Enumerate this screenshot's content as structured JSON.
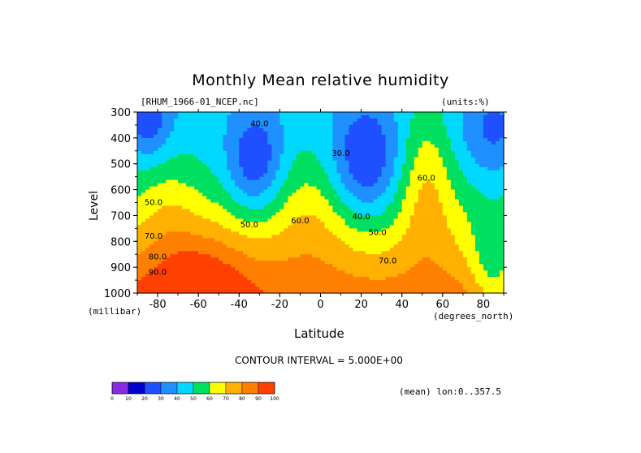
{
  "chart_data": {
    "type": "heatmap",
    "title": "Monthly Mean relative humidity",
    "file_label": "[RHUM_1966-01_NCEP.nc]",
    "units_label": "(units:%)",
    "xlabel": "Latitude",
    "ylabel": "Level",
    "x_units": "(degrees_north)",
    "y_units": "(millibar)",
    "xlim": [
      -90,
      90
    ],
    "ylim": [
      1000,
      300
    ],
    "x_ticks": [
      "-80",
      "-60",
      "-40",
      "-20",
      "0",
      "20",
      "40",
      "60",
      "80"
    ],
    "y_ticks": [
      "300",
      "400",
      "500",
      "600",
      "700",
      "800",
      "900",
      "1000"
    ],
    "contour_interval_text": "CONTOUR INTERVAL = 5.000E+00",
    "mean_text": "(mean) lon:0..357.5",
    "contour_labels": [
      {
        "text": "40.0",
        "lat": -30,
        "level": 355
      },
      {
        "text": "30.0",
        "lat": 10,
        "level": 470
      },
      {
        "text": "60.0",
        "lat": 52,
        "level": 565
      },
      {
        "text": "50.0",
        "lat": -82,
        "level": 660
      },
      {
        "text": "50.0",
        "lat": -35,
        "level": 745
      },
      {
        "text": "60.0",
        "lat": -10,
        "level": 730
      },
      {
        "text": "40.0",
        "lat": 20,
        "level": 715
      },
      {
        "text": "50.0",
        "lat": 28,
        "level": 775
      },
      {
        "text": "70.0",
        "lat": -82,
        "level": 790
      },
      {
        "text": "70.0",
        "lat": 33,
        "level": 885
      },
      {
        "text": "80.0",
        "lat": -80,
        "level": 870
      },
      {
        "text": "90.0",
        "lat": -80,
        "level": 930
      }
    ],
    "colorbar": {
      "ticks": [
        "0",
        "10",
        "20",
        "30",
        "40",
        "50",
        "60",
        "70",
        "80",
        "90",
        "100"
      ],
      "colors": [
        "#8a2be2",
        "#0000cd",
        "#1e50ff",
        "#1e90ff",
        "#00d8ff",
        "#00e060",
        "#ffff00",
        "#ffb000",
        "#ff8000",
        "#ff4000",
        "#ff0000"
      ]
    },
    "levels": [
      300,
      400,
      500,
      600,
      700,
      800,
      900,
      1000
    ],
    "grid": false
  }
}
